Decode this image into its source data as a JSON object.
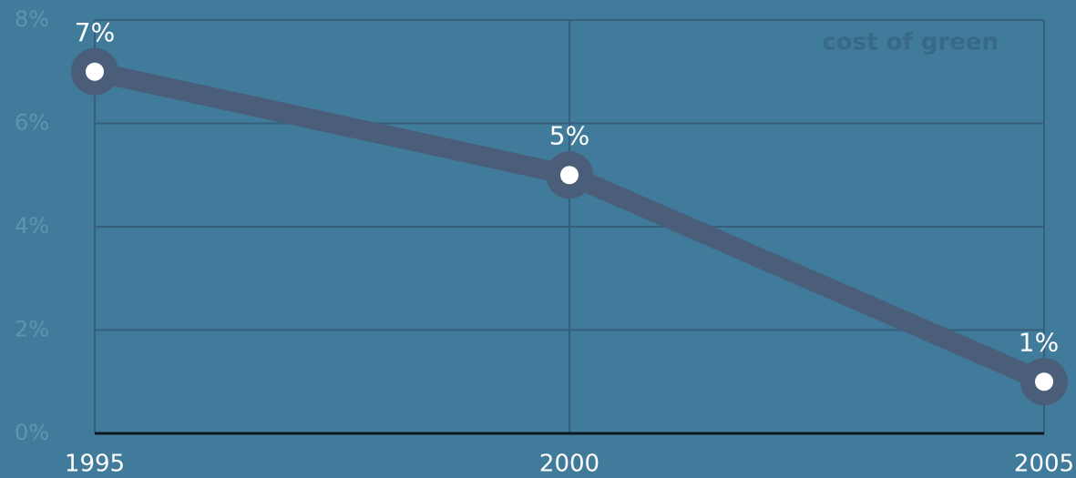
{
  "chart_data": {
    "type": "line",
    "title": "cost of green",
    "x": [
      1995,
      2000,
      2005
    ],
    "values": [
      7,
      5,
      1
    ],
    "value_labels": [
      "7%",
      "5%",
      "1%"
    ],
    "color": "#4a5e7a",
    "xlim": [
      1995,
      2005
    ],
    "xticks": [
      1995,
      2000,
      2005
    ],
    "ylim": [
      0,
      8
    ],
    "yticks": [
      {
        "value": 0,
        "label": "0%"
      },
      {
        "value": 2,
        "label": "2%"
      },
      {
        "value": 4,
        "label": "4%"
      },
      {
        "value": 6,
        "label": "6%"
      },
      {
        "value": 8,
        "label": "8%"
      }
    ],
    "grid": true
  }
}
